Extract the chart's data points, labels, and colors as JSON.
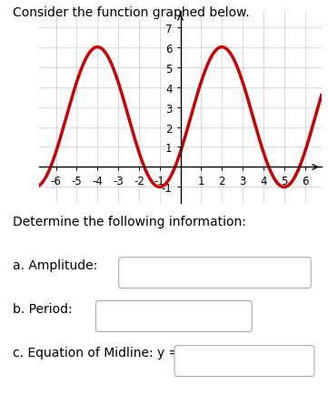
{
  "title": "Consider the function graphed below.",
  "title_fontsize": 10,
  "xlim": [
    -6.8,
    6.8
  ],
  "ylim": [
    -1.8,
    7.8
  ],
  "xticks": [
    -6,
    -5,
    -4,
    -3,
    -2,
    -1,
    1,
    2,
    3,
    4,
    5,
    6
  ],
  "yticks": [
    -1,
    1,
    2,
    3,
    4,
    5,
    6,
    7
  ],
  "curve_color": "#cc0000",
  "curve_linewidth": 2.5,
  "amplitude": 3.5,
  "midline": 2.5,
  "period": 6,
  "phase_shift": -4,
  "background_color": "#ffffff",
  "grid_color": "#cccccc",
  "bottom_text": "Determine the following information:",
  "label_a": "a. Amplitude:",
  "label_b": "b. Period:",
  "label_c": "c. Equation of Midline: y =",
  "box_color": "#aaaaaa",
  "text_fontsize": 10,
  "axes_label_fontsize": 8.5
}
